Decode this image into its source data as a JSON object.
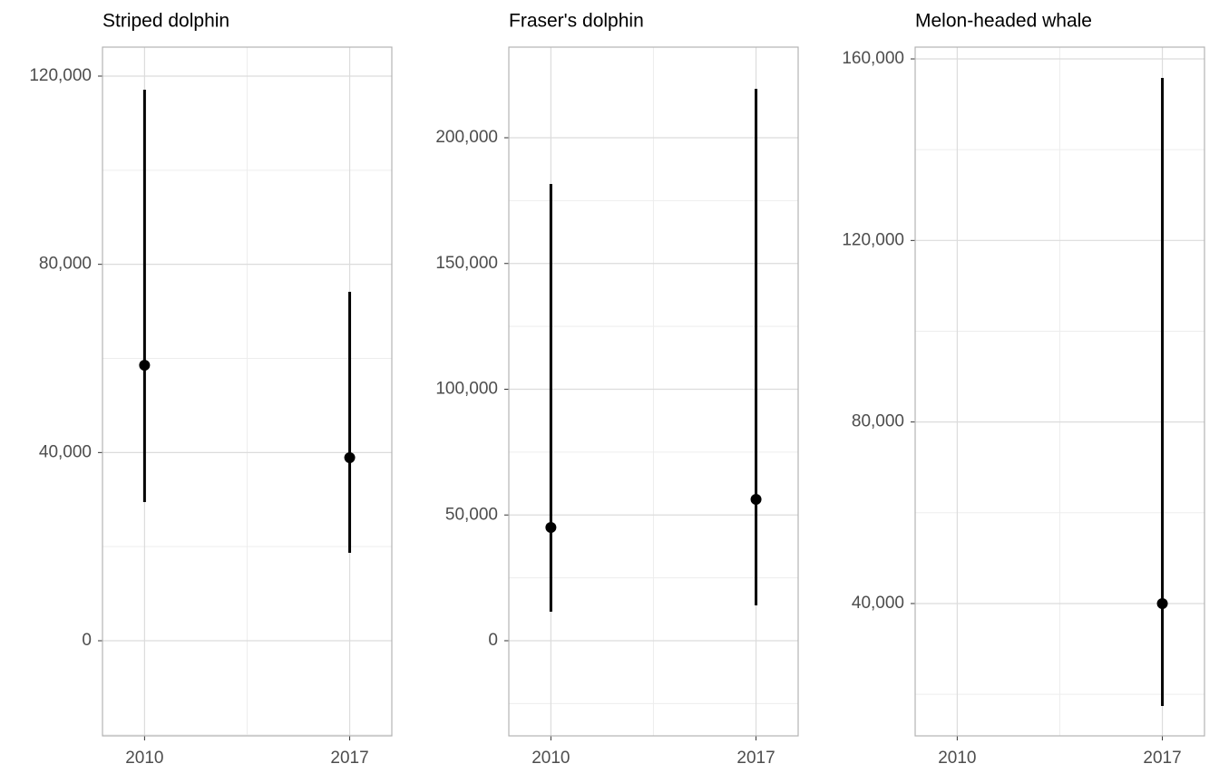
{
  "chart_data": [
    {
      "type": "pointrange",
      "title": "Striped dolphin",
      "categories": [
        "2010",
        "2017"
      ],
      "values": [
        58550,
        38900
      ],
      "lower": [
        29470,
        18680
      ],
      "upper": [
        117100,
        74150
      ],
      "color": "#000000",
      "ylim": [
        -20220,
        126160
      ],
      "yticks": [
        0,
        {
          "value": 40000,
          "label": "40,000"
        },
        {
          "value": 80000,
          "label": "80,000"
        },
        {
          "value": 120000,
          "label": "120,000"
        }
      ],
      "yminor": [
        -20000,
        20000,
        60000,
        100000
      ],
      "grid": true
    },
    {
      "type": "pointrange",
      "title": "Fraser's dolphin",
      "categories": [
        "2010",
        "2017"
      ],
      "values": [
        45050,
        56220
      ],
      "lower": [
        11530,
        14050
      ],
      "upper": [
        181620,
        219460
      ],
      "color": "#000000",
      "ylim": [
        -37840,
        236040
      ],
      "yticks": [
        0,
        {
          "value": 50000,
          "label": "50,000"
        },
        {
          "value": 100000,
          "label": "100,000"
        },
        {
          "value": 150000,
          "label": "150,000"
        },
        {
          "value": 200000,
          "label": "200,000"
        }
      ],
      "yminor": [
        -25000,
        25000,
        75000,
        125000,
        175000
      ],
      "grid": true
    },
    {
      "type": "pointrange",
      "title": "Melon-headed whale",
      "categories": [
        "2010",
        "2017"
      ],
      "values": [
        null,
        40000
      ],
      "lower": [
        null,
        17440
      ],
      "upper": [
        null,
        155800
      ],
      "color": "#000000",
      "ylim": [
        10840,
        162600
      ],
      "yticks": [
        {
          "value": 40000,
          "label": "40,000"
        },
        {
          "value": 80000,
          "label": "80,000"
        },
        {
          "value": 120000,
          "label": "120,000"
        },
        {
          "value": 160000,
          "label": "160,000"
        }
      ],
      "yminor": [
        20000,
        60000,
        100000,
        140000
      ],
      "grid": true
    }
  ]
}
